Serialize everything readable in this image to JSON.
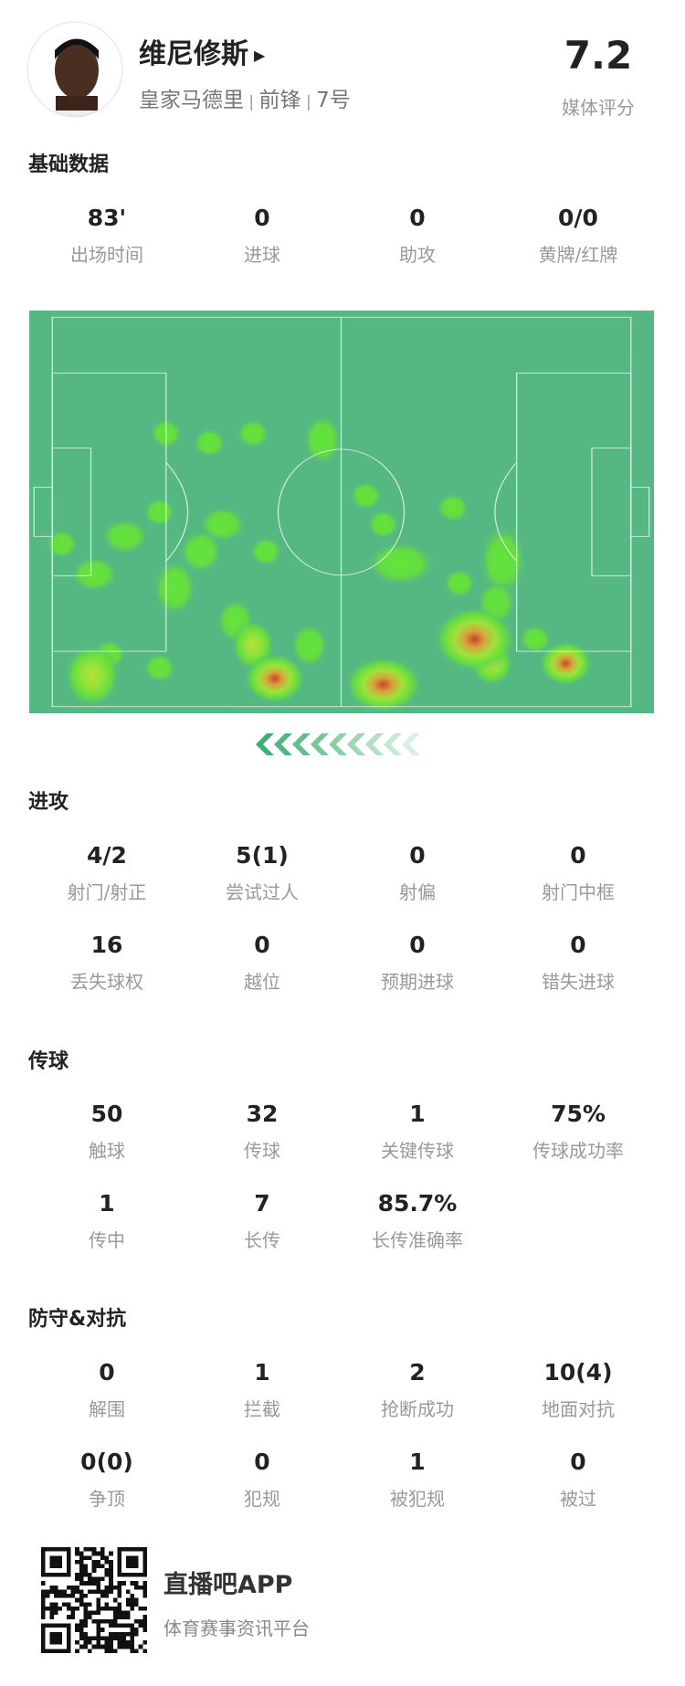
{
  "player": {
    "name": "维尼修斯",
    "team": "皇家马德里",
    "position": "前锋",
    "number": "7号",
    "rating": "7.2",
    "rating_label": "媒体评分"
  },
  "basic": {
    "title": "基础数据",
    "stats": [
      {
        "value": "83'",
        "label": "出场时间"
      },
      {
        "value": "0",
        "label": "进球"
      },
      {
        "value": "0",
        "label": "助攻"
      },
      {
        "value": "0/0",
        "label": "黄牌/红牌"
      }
    ]
  },
  "heatmap": {
    "pitch_color": "#55b883",
    "direction": "left"
  },
  "attack": {
    "title": "进攻",
    "stats": [
      {
        "value": "4/2",
        "label": "射门/射正"
      },
      {
        "value": "5(1)",
        "label": "尝试过人"
      },
      {
        "value": "0",
        "label": "射偏"
      },
      {
        "value": "0",
        "label": "射门中框"
      },
      {
        "value": "16",
        "label": "丢失球权"
      },
      {
        "value": "0",
        "label": "越位"
      },
      {
        "value": "0",
        "label": "预期进球"
      },
      {
        "value": "0",
        "label": "错失进球"
      }
    ]
  },
  "passing": {
    "title": "传球",
    "stats": [
      {
        "value": "50",
        "label": "触球"
      },
      {
        "value": "32",
        "label": "传球"
      },
      {
        "value": "1",
        "label": "关键传球"
      },
      {
        "value": "75%",
        "label": "传球成功率"
      },
      {
        "value": "1",
        "label": "传中"
      },
      {
        "value": "7",
        "label": "长传"
      },
      {
        "value": "85.7%",
        "label": "长传准确率"
      }
    ]
  },
  "defense": {
    "title": "防守&对抗",
    "stats": [
      {
        "value": "0",
        "label": "解围"
      },
      {
        "value": "1",
        "label": "拦截"
      },
      {
        "value": "2",
        "label": "抢断成功"
      },
      {
        "value": "10(4)",
        "label": "地面对抗"
      },
      {
        "value": "0(0)",
        "label": "争顶"
      },
      {
        "value": "0",
        "label": "犯规"
      },
      {
        "value": "1",
        "label": "被犯规"
      },
      {
        "value": "0",
        "label": "被过"
      }
    ]
  },
  "footer": {
    "app": "直播吧APP",
    "slogan": "体育赛事资讯平台"
  }
}
